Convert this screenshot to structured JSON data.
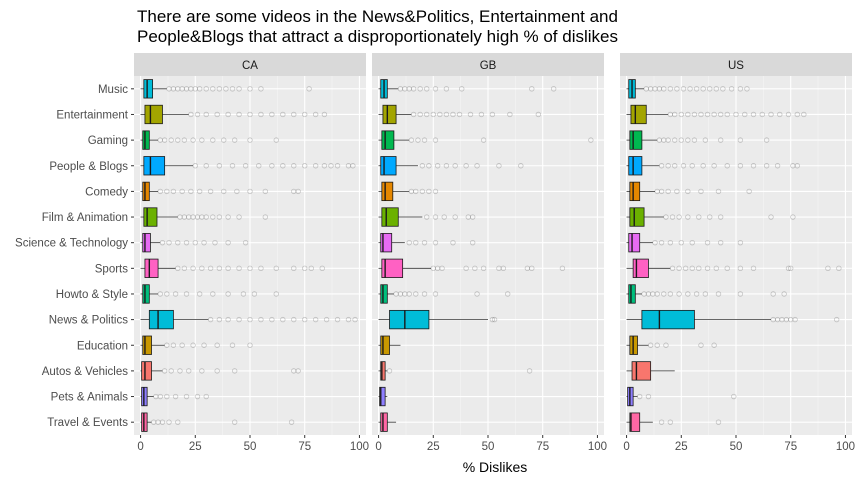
{
  "chart_data": {
    "type": "boxplot",
    "title": "There are some videos in the News&Politics, Entertainment and People&Blogs that attract a disproportionately high % of dislikes",
    "title_lines": [
      "There are some videos in the News&Politics, Entertainment and",
      "People&Blogs that attract a disproportionately high % of dislikes"
    ],
    "xlabel": "% Dislikes",
    "ylabel": "",
    "xlim": [
      -3,
      103
    ],
    "x_ticks": [
      0,
      25,
      50,
      75,
      100
    ],
    "grid": true,
    "legend": "none",
    "categories": [
      "Music",
      "Entertainment",
      "Gaming",
      "People & Blogs",
      "Comedy",
      "Film & Animation",
      "Science & Technology",
      "Sports",
      "Howto & Style",
      "News & Politics",
      "Education",
      "Autos & Vehicles",
      "Pets & Animals",
      "Travel & Events"
    ],
    "colors": [
      "#00BCD8",
      "#A3A500",
      "#00B850",
      "#00A9FF",
      "#E58700",
      "#6BB100",
      "#E76BF3",
      "#FF61C3",
      "#00BF7D",
      "#00BCD8",
      "#C99800",
      "#F8766D",
      "#8F7FFF",
      "#FF67A4"
    ],
    "panels": [
      {
        "name": "CA",
        "boxes": [
          {
            "q1": 1.5,
            "median": 3,
            "q3": 5.5,
            "whisker_low": 0,
            "whisker_high": 12,
            "outliers": [
              13,
              15,
              17,
              19,
              21,
              23,
              25,
              27,
              30,
              33,
              36,
              39,
              42,
              45,
              50,
              55,
              77
            ]
          },
          {
            "q1": 2,
            "median": 4.5,
            "q3": 10,
            "whisker_low": 0,
            "whisker_high": 22,
            "outliers": [
              23,
              26,
              30,
              35,
              40,
              45,
              50,
              55,
              60,
              65,
              70,
              75,
              80,
              84
            ]
          },
          {
            "q1": 1,
            "median": 2,
            "q3": 4,
            "whisker_low": 0,
            "whisker_high": 8,
            "outliers": [
              9,
              11,
              14,
              17,
              20,
              24,
              28,
              33,
              38,
              43,
              50,
              62
            ]
          },
          {
            "q1": 1.5,
            "median": 4.5,
            "q3": 11,
            "whisker_low": 0,
            "whisker_high": 24,
            "outliers": [
              25,
              30,
              36,
              42,
              48,
              54,
              60,
              65,
              70,
              75,
              80,
              84,
              87,
              90,
              95,
              97
            ]
          },
          {
            "q1": 1,
            "median": 2,
            "q3": 4,
            "whisker_low": 0,
            "whisker_high": 8,
            "outliers": [
              9,
              12,
              15,
              19,
              23,
              27,
              32,
              38,
              44,
              50,
              57,
              70,
              72
            ]
          },
          {
            "q1": 1.5,
            "median": 3,
            "q3": 7.5,
            "whisker_low": 0,
            "whisker_high": 17,
            "outliers": [
              18,
              20,
              22,
              24,
              26,
              28,
              30,
              33,
              36,
              40,
              45,
              57
            ]
          },
          {
            "q1": 1,
            "median": 2,
            "q3": 4.5,
            "whisker_low": 0,
            "whisker_high": 9,
            "outliers": [
              10,
              13,
              17,
              21,
              25,
              29,
              34,
              40,
              48
            ]
          },
          {
            "q1": 2,
            "median": 4,
            "q3": 8,
            "whisker_low": 0,
            "whisker_high": 16,
            "outliers": [
              17,
              20,
              24,
              28,
              32,
              36,
              40,
              45,
              50,
              55,
              62,
              70,
              75,
              78,
              83
            ]
          },
          {
            "q1": 1,
            "median": 2,
            "q3": 4,
            "whisker_low": 0,
            "whisker_high": 8,
            "outliers": [
              9,
              12,
              16,
              21,
              27,
              33,
              40,
              47,
              52,
              62
            ]
          },
          {
            "q1": 4,
            "median": 8,
            "q3": 15,
            "whisker_low": 0,
            "whisker_high": 31,
            "outliers": [
              32,
              36,
              40,
              45,
              50,
              55,
              60,
              65,
              70,
              75,
              80,
              85,
              90,
              95,
              98
            ]
          },
          {
            "q1": 1,
            "median": 2,
            "q3": 5,
            "whisker_low": 0,
            "whisker_high": 11,
            "outliers": [
              12,
              15,
              19,
              24,
              29,
              35,
              42,
              50
            ]
          },
          {
            "q1": 0.5,
            "median": 2,
            "q3": 5,
            "whisker_low": 0,
            "whisker_high": 10,
            "outliers": [
              11,
              14,
              18,
              22,
              28,
              35,
              43,
              70,
              72
            ]
          },
          {
            "q1": 0.5,
            "median": 1.5,
            "q3": 3,
            "whisker_low": 0,
            "whisker_high": 6,
            "outliers": [
              7,
              9,
              12,
              16,
              21,
              26,
              30
            ]
          },
          {
            "q1": 0.5,
            "median": 1.5,
            "q3": 3,
            "whisker_low": 0,
            "whisker_high": 5,
            "outliers": [
              6,
              8,
              10,
              13,
              17,
              43,
              69
            ]
          }
        ]
      },
      {
        "name": "GB",
        "boxes": [
          {
            "q1": 1,
            "median": 2.5,
            "q3": 4,
            "whisker_low": 0,
            "whisker_high": 9,
            "outliers": [
              10,
              12,
              14,
              16,
              19,
              22,
              26,
              31,
              38,
              70,
              80
            ]
          },
          {
            "q1": 2,
            "median": 4,
            "q3": 8,
            "whisker_low": 0,
            "whisker_high": 15,
            "outliers": [
              16,
              19,
              22,
              25,
              28,
              31,
              34,
              37,
              42,
              47,
              52,
              60,
              73
            ]
          },
          {
            "q1": 1.5,
            "median": 3,
            "q3": 7,
            "whisker_low": 0,
            "whisker_high": 14,
            "outliers": [
              15,
              18,
              21,
              26,
              48,
              97
            ]
          },
          {
            "q1": 1,
            "median": 2.5,
            "q3": 8,
            "whisker_low": 0,
            "whisker_high": 18,
            "outliers": [
              20,
              23,
              27,
              31,
              35,
              40,
              45,
              55,
              65
            ]
          },
          {
            "q1": 1.5,
            "median": 3,
            "q3": 6.5,
            "whisker_low": 0,
            "whisker_high": 14,
            "outliers": [
              15,
              17,
              20,
              23,
              26
            ]
          },
          {
            "q1": 1.5,
            "median": 3.5,
            "q3": 9,
            "whisker_low": 0,
            "whisker_high": 20,
            "outliers": [
              22,
              26,
              30,
              35,
              41,
              43
            ]
          },
          {
            "q1": 1,
            "median": 2,
            "q3": 6,
            "whisker_low": 0,
            "whisker_high": 12,
            "outliers": [
              14,
              17,
              21,
              26,
              34,
              43
            ]
          },
          {
            "q1": 1.5,
            "median": 3,
            "q3": 11,
            "whisker_low": 0,
            "whisker_high": 24,
            "outliers": [
              25,
              27,
              29,
              40,
              44,
              48,
              55,
              57,
              68,
              70,
              84
            ]
          },
          {
            "q1": 1,
            "median": 2,
            "q3": 4,
            "whisker_low": 0,
            "whisker_high": 7,
            "outliers": [
              8,
              10,
              12,
              14,
              17,
              21,
              26,
              45,
              59
            ]
          },
          {
            "q1": 5,
            "median": 12,
            "q3": 23,
            "whisker_low": 0,
            "whisker_high": 50,
            "outliers": [
              52,
              53
            ]
          },
          {
            "q1": 1,
            "median": 2,
            "q3": 5,
            "whisker_low": 0,
            "whisker_high": 10,
            "outliers": []
          },
          {
            "q1": 1,
            "median": 1.5,
            "q3": 3,
            "whisker_low": 0,
            "whisker_high": 4,
            "outliers": [
              5,
              69
            ]
          },
          {
            "q1": 0.5,
            "median": 1,
            "q3": 3,
            "whisker_low": 0,
            "whisker_high": 4,
            "outliers": []
          },
          {
            "q1": 1,
            "median": 2,
            "q3": 4,
            "whisker_low": 0,
            "whisker_high": 8,
            "outliers": []
          }
        ]
      },
      {
        "name": "US",
        "boxes": [
          {
            "q1": 1,
            "median": 2.5,
            "q3": 4,
            "whisker_low": 0,
            "whisker_high": 8,
            "outliers": [
              9,
              11,
              13,
              15,
              17,
              20,
              23,
              26,
              29,
              32,
              35,
              38,
              41,
              44,
              48,
              52,
              55
            ]
          },
          {
            "q1": 2,
            "median": 4,
            "q3": 9,
            "whisker_low": 0,
            "whisker_high": 19,
            "outliers": [
              20,
              22,
              25,
              28,
              31,
              34,
              37,
              40,
              43,
              46,
              50,
              54,
              58,
              62,
              66,
              70,
              74,
              78,
              81
            ]
          },
          {
            "q1": 1.5,
            "median": 3,
            "q3": 7,
            "whisker_low": 0,
            "whisker_high": 14,
            "outliers": [
              15,
              17,
              19,
              22,
              25,
              28,
              31,
              36,
              43,
              52,
              64
            ]
          },
          {
            "q1": 1,
            "median": 3,
            "q3": 7,
            "whisker_low": 0,
            "whisker_high": 15,
            "outliers": [
              16,
              19,
              22,
              26,
              30,
              35,
              40,
              46,
              52,
              58,
              64,
              69,
              76,
              78
            ]
          },
          {
            "q1": 1.5,
            "median": 3,
            "q3": 6,
            "whisker_low": 0,
            "whisker_high": 13,
            "outliers": [
              14,
              16,
              19,
              23,
              28,
              34,
              42,
              56
            ]
          },
          {
            "q1": 1.5,
            "median": 3.5,
            "q3": 8,
            "whisker_low": 0,
            "whisker_high": 17,
            "outliers": [
              18,
              21,
              24,
              28,
              33,
              38,
              43,
              66,
              76
            ]
          },
          {
            "q1": 1,
            "median": 2.5,
            "q3": 6,
            "whisker_low": 0,
            "whisker_high": 12,
            "outliers": [
              13,
              16,
              20,
              25,
              30,
              37,
              43,
              52
            ]
          },
          {
            "q1": 3,
            "median": 4.5,
            "q3": 10,
            "whisker_low": 0,
            "whisker_high": 20,
            "outliers": [
              21,
              24,
              27,
              30,
              33,
              37,
              41,
              46,
              52,
              58,
              74,
              75,
              92,
              97
            ]
          },
          {
            "q1": 1,
            "median": 2,
            "q3": 4,
            "whisker_low": 0,
            "whisker_high": 7,
            "outliers": [
              8,
              10,
              12,
              14,
              17,
              20,
              24,
              28,
              32,
              36,
              42,
              52,
              67,
              72
            ]
          },
          {
            "q1": 7,
            "median": 15,
            "q3": 31,
            "whisker_low": 0,
            "whisker_high": 66,
            "outliers": [
              67,
              69,
              71,
              73,
              75,
              77,
              96
            ]
          },
          {
            "q1": 1.5,
            "median": 3,
            "q3": 5,
            "whisker_low": 0,
            "whisker_high": 10,
            "outliers": [
              11,
              14,
              18,
              34,
              40
            ]
          },
          {
            "q1": 2.5,
            "median": 4.5,
            "q3": 11,
            "whisker_low": 0,
            "whisker_high": 22,
            "outliers": []
          },
          {
            "q1": 0.5,
            "median": 1.5,
            "q3": 3,
            "whisker_low": 0,
            "whisker_high": 5,
            "outliers": [
              6,
              10,
              49
            ]
          },
          {
            "q1": 1.5,
            "median": 2,
            "q3": 6,
            "whisker_low": 0,
            "whisker_high": 12,
            "outliers": [
              16,
              20,
              42
            ]
          }
        ]
      }
    ]
  }
}
